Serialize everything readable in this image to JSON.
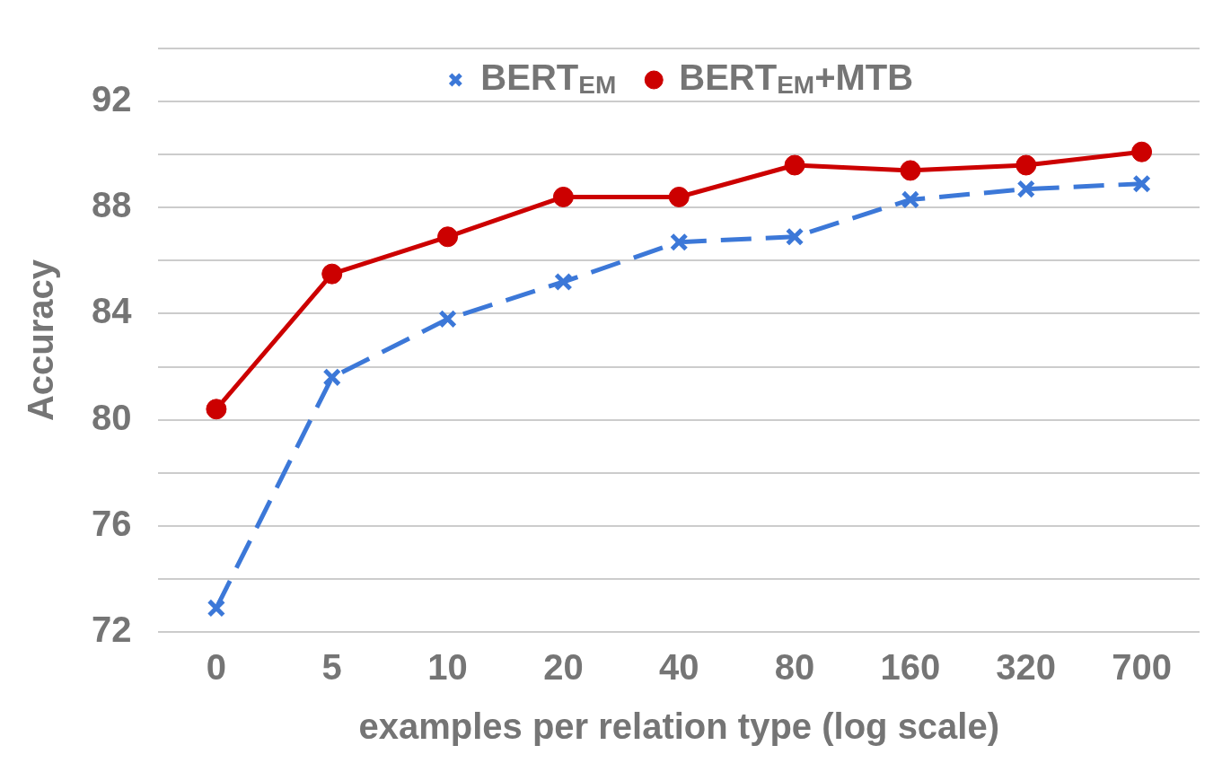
{
  "chart_data": {
    "type": "line",
    "xlabel": "examples per relation type (log scale)",
    "ylabel": "Accuracy",
    "categories": [
      "0",
      "5",
      "10",
      "20",
      "40",
      "80",
      "160",
      "320",
      "700"
    ],
    "series": [
      {
        "name": "BERT$_{EM}$",
        "color": "#3c78d8",
        "marker": "cross",
        "line_style": "dashed",
        "values": [
          72.9,
          81.6,
          83.8,
          85.2,
          86.7,
          86.9,
          88.3,
          88.7,
          88.9
        ]
      },
      {
        "name": "BERT$_{EM}$+MTB",
        "color": "#cc0000",
        "marker": "circle",
        "line_style": "solid",
        "values": [
          80.4,
          85.5,
          86.9,
          88.4,
          88.4,
          89.6,
          89.4,
          89.6,
          90.1
        ]
      }
    ],
    "ylim": [
      72,
      94
    ],
    "yticks": [
      72,
      {
        "value": 74,
        "label": null
      },
      76,
      {
        "value": 78,
        "label": null
      },
      80,
      {
        "value": 82,
        "label": null
      },
      84,
      {
        "value": 86,
        "label": null
      },
      88,
      {
        "value": 90,
        "label": null
      },
      92,
      {
        "value": 94,
        "label": null
      }
    ],
    "grid": "y",
    "legend": "top"
  }
}
